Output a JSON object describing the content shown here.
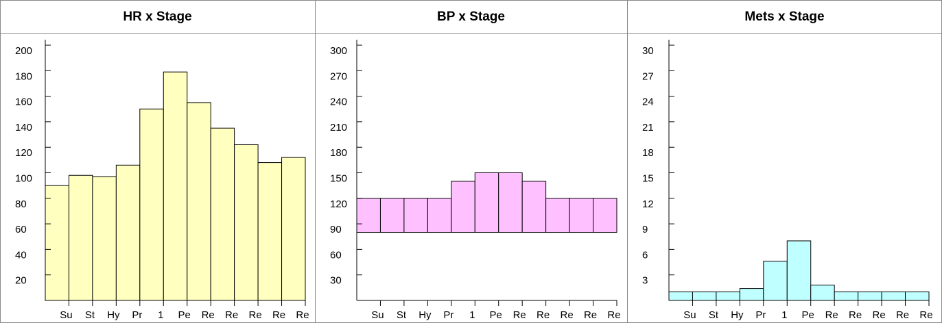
{
  "chart_data": [
    {
      "type": "bar",
      "title": "HR x Stage",
      "categories": [
        "Su",
        "St",
        "Hy",
        "Pr",
        "1",
        "Pe",
        "Re",
        "Re",
        "Re",
        "Re",
        "Re"
      ],
      "values": [
        90,
        98,
        97,
        106,
        150,
        179,
        155,
        135,
        122,
        108,
        112
      ],
      "color": "#ffffc0",
      "ylim": [
        0,
        200
      ],
      "yticks": [
        20,
        40,
        60,
        80,
        100,
        120,
        140,
        160,
        180,
        200
      ]
    },
    {
      "type": "range-bar",
      "title": "BP x Stage",
      "categories": [
        "Su",
        "St",
        "Hy",
        "Pr",
        "1",
        "Pe",
        "Re",
        "Re",
        "Re",
        "Re",
        "Re"
      ],
      "low": [
        80,
        80,
        80,
        80,
        80,
        80,
        80,
        80,
        80,
        80,
        80
      ],
      "high": [
        120,
        120,
        120,
        120,
        140,
        150,
        150,
        140,
        120,
        120,
        120
      ],
      "color": "#ffc0ff",
      "ylim": [
        0,
        300
      ],
      "yticks": [
        30,
        60,
        90,
        120,
        150,
        180,
        210,
        240,
        270,
        300
      ]
    },
    {
      "type": "bar",
      "title": "Mets x Stage",
      "categories": [
        "Su",
        "St",
        "Hy",
        "Pr",
        "1",
        "Pe",
        "Re",
        "Re",
        "Re",
        "Re",
        "Re"
      ],
      "values": [
        1,
        1,
        1,
        1.4,
        4.6,
        7,
        1.8,
        1,
        1,
        1,
        1
      ],
      "color": "#c0ffff",
      "ylim": [
        0,
        30
      ],
      "yticks": [
        3,
        6,
        9,
        12,
        15,
        18,
        21,
        24,
        27,
        30
      ]
    }
  ]
}
